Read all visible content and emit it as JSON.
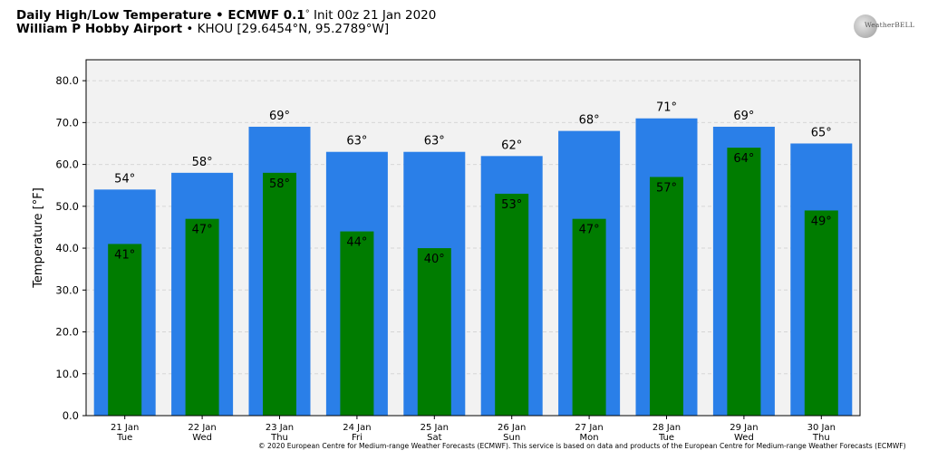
{
  "header": {
    "line1_bold": "Daily High/Low Temperature • ECMWF 0.1",
    "line1_deg": "°",
    "line1_rest": " Init 00z 21 Jan 2020",
    "line2_bold": "William P Hobby Airport",
    "line2_rest": " • KHOU [29.6454°N, 95.2789°W]"
  },
  "logo": {
    "text": "WeatherBELL"
  },
  "copyright": "© 2020 European Centre for Medium-range Weather Forecasts (ECMWF). This service is based on data and products of the European Centre for Medium-range Weather Forecasts (ECMWF)",
  "chart_data": {
    "type": "bar",
    "title": "",
    "ylabel": "Temperature [°F]",
    "ylim": [
      0,
      85
    ],
    "yticks": [
      0,
      10,
      20,
      30,
      40,
      50,
      60,
      70,
      80
    ],
    "ytick_labels": [
      "0.0",
      "10.0",
      "20.0",
      "30.0",
      "40.0",
      "50.0",
      "60.0",
      "70.0",
      "80.0"
    ],
    "grid": "horizontal dashed",
    "categories": [
      {
        "date": "21 Jan",
        "day": "Tue"
      },
      {
        "date": "22 Jan",
        "day": "Wed"
      },
      {
        "date": "23 Jan",
        "day": "Thu"
      },
      {
        "date": "24 Jan",
        "day": "Fri"
      },
      {
        "date": "25 Jan",
        "day": "Sat"
      },
      {
        "date": "26 Jan",
        "day": "Sun"
      },
      {
        "date": "27 Jan",
        "day": "Mon"
      },
      {
        "date": "28 Jan",
        "day": "Tue"
      },
      {
        "date": "29 Jan",
        "day": "Wed"
      },
      {
        "date": "30 Jan",
        "day": "Thu"
      }
    ],
    "series": [
      {
        "color": "#2a7fe8",
        "values": [
          54,
          58,
          69,
          63,
          63,
          62,
          68,
          71,
          69,
          65
        ],
        "labels": [
          "54°",
          "58°",
          "69°",
          "63°",
          "63°",
          "62°",
          "68°",
          "71°",
          "69°",
          "65°"
        ]
      },
      {
        "color": "#007c00",
        "values": [
          41,
          47,
          58,
          44,
          40,
          53,
          47,
          57,
          64,
          49
        ],
        "labels": [
          "41°",
          "47°",
          "58°",
          "44°",
          "40°",
          "53°",
          "47°",
          "57°",
          "64°",
          "49°"
        ]
      }
    ],
    "plot_background": "#f2f2f2"
  }
}
